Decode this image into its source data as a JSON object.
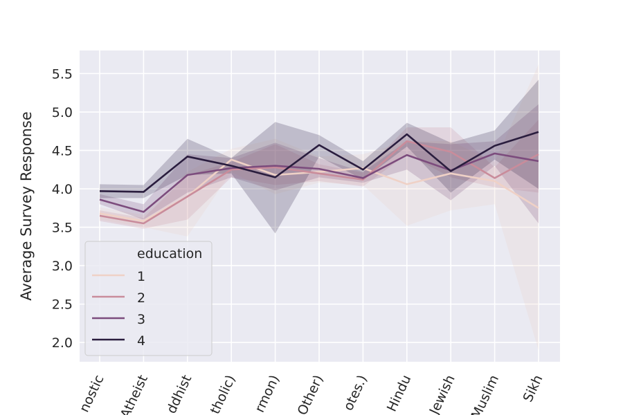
{
  "chart_data": {
    "type": "line",
    "title": "",
    "xlabel": "",
    "ylabel": "Average Survey Response",
    "ylim": [
      1.75,
      5.8
    ],
    "yticks": [
      2.0,
      2.5,
      3.0,
      3.5,
      4.0,
      4.5,
      5.0,
      5.5
    ],
    "ytick_labels": [
      "2.0",
      "2.5",
      "3.0",
      "3.5",
      "4.0",
      "4.5",
      "5.0",
      "5.5"
    ],
    "categories": [
      "nostic",
      "Atheist",
      "ddhist",
      "tholic)",
      "rmon)",
      "Other)",
      "otes.)",
      "Hindu",
      "Jewish",
      "Muslim",
      "Sikh"
    ],
    "grid": true,
    "background": "#eaeaf2",
    "legend": {
      "title": "education",
      "placement": "lower-left"
    },
    "series": [
      {
        "name": "1",
        "color": "#efd1c6",
        "values": [
          3.68,
          3.58,
          3.9,
          4.38,
          4.18,
          4.22,
          4.27,
          4.06,
          4.2,
          4.1,
          3.75
        ],
        "lower": [
          3.6,
          3.5,
          3.38,
          4.22,
          3.93,
          4.08,
          4.05,
          3.52,
          3.72,
          3.8,
          1.9
        ],
        "upper": [
          3.76,
          3.66,
          4.22,
          4.52,
          4.65,
          4.42,
          4.45,
          4.62,
          4.62,
          4.35,
          5.62
        ]
      },
      {
        "name": "2",
        "color": "#c98c9b",
        "values": [
          3.65,
          3.55,
          3.9,
          4.25,
          4.28,
          4.2,
          4.12,
          4.62,
          4.48,
          4.14,
          4.45
        ],
        "lower": [
          3.58,
          3.48,
          3.6,
          4.15,
          4.05,
          4.1,
          4.03,
          4.45,
          4.15,
          4.02,
          3.95
        ],
        "upper": [
          3.72,
          3.62,
          4.18,
          4.35,
          4.58,
          4.32,
          4.21,
          4.8,
          4.8,
          4.28,
          4.9
        ]
      },
      {
        "name": "3",
        "color": "#7c4c7d",
        "values": [
          3.86,
          3.7,
          4.18,
          4.27,
          4.3,
          4.26,
          4.14,
          4.44,
          4.24,
          4.46,
          4.36
        ],
        "lower": [
          3.8,
          3.6,
          3.95,
          4.15,
          3.98,
          4.15,
          4.08,
          4.25,
          3.85,
          4.3,
          3.55
        ],
        "upper": [
          3.93,
          3.8,
          4.45,
          4.4,
          4.6,
          4.4,
          4.22,
          4.62,
          4.58,
          4.62,
          5.1
        ]
      },
      {
        "name": "4",
        "color": "#2a1d3e",
        "values": [
          3.97,
          3.96,
          4.42,
          4.3,
          4.15,
          4.57,
          4.25,
          4.71,
          4.23,
          4.56,
          4.74
        ],
        "lower": [
          3.88,
          3.88,
          4.18,
          4.2,
          3.42,
          4.42,
          4.12,
          4.55,
          3.95,
          4.38,
          4.0
        ],
        "upper": [
          4.06,
          4.05,
          4.65,
          4.4,
          4.87,
          4.7,
          4.36,
          4.86,
          4.6,
          4.76,
          5.42
        ]
      }
    ]
  }
}
